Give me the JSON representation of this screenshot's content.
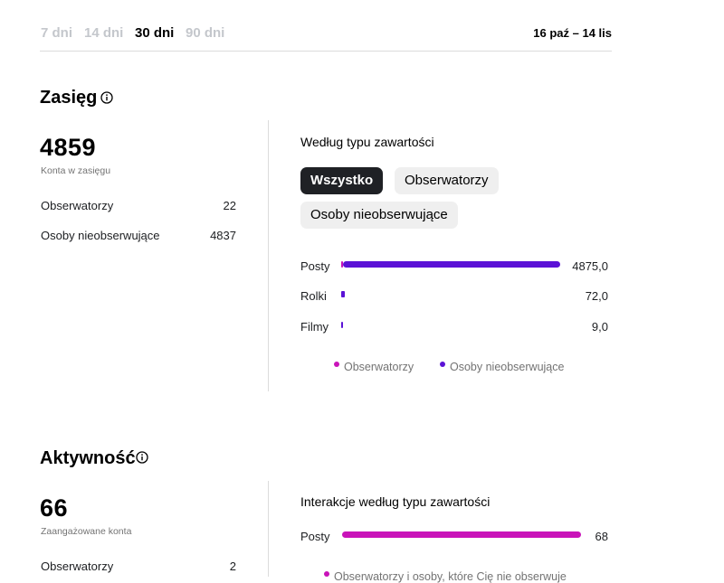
{
  "range_tabs": [
    {
      "label": "7 dni",
      "active": false
    },
    {
      "label": "14 dni",
      "active": false
    },
    {
      "label": "30 dni",
      "active": true
    },
    {
      "label": "90 dni",
      "active": false
    }
  ],
  "date_range": "16 paź – 14 lis",
  "reach": {
    "title": "Zasięg",
    "info_icon": "info-circle-icon",
    "total": "4859",
    "total_label": "Konta w zasięgu",
    "rows": [
      {
        "label": "Obserwatorzy",
        "value": "22"
      },
      {
        "label": "Osoby nieobserwujące",
        "value": "4837"
      }
    ],
    "panel_title": "Według typu zawartości",
    "filters": [
      {
        "label": "Wszystko",
        "active": true
      },
      {
        "label": "Obserwatorzy",
        "active": false
      },
      {
        "label": "Osoby nieobserwujące",
        "active": false
      }
    ],
    "bars": [
      {
        "label": "Posty",
        "value_text": "4875,0",
        "followers": 22,
        "non_followers": 4853
      },
      {
        "label": "Rolki",
        "value_text": "72,0",
        "followers": 0,
        "non_followers": 72
      },
      {
        "label": "Filmy",
        "value_text": "9,0",
        "followers": 0,
        "non_followers": 9
      }
    ],
    "legend": [
      {
        "label": "Obserwatorzy",
        "color": "#c913b9"
      },
      {
        "label": "Osoby nieobserwujące",
        "color": "#5b12d6"
      }
    ]
  },
  "activity": {
    "title": "Aktywność",
    "info_icon": "info-circle-icon",
    "total": "66",
    "total_label": "Zaangażowane konta",
    "rows": [
      {
        "label": "Obserwatorzy",
        "value": "2"
      }
    ],
    "panel_title": "Interakcje według typu zawartości",
    "bars": [
      {
        "label": "Posty",
        "value_text": "68",
        "value": 68
      }
    ],
    "legend_partial": "Obserwatorzy i osoby, które Cię nie obserwuje",
    "bar_color": "#c913b9"
  },
  "colors": {
    "followers": "#c913b9",
    "non_followers": "#5b12d6",
    "divider": "#dbdbdb"
  }
}
